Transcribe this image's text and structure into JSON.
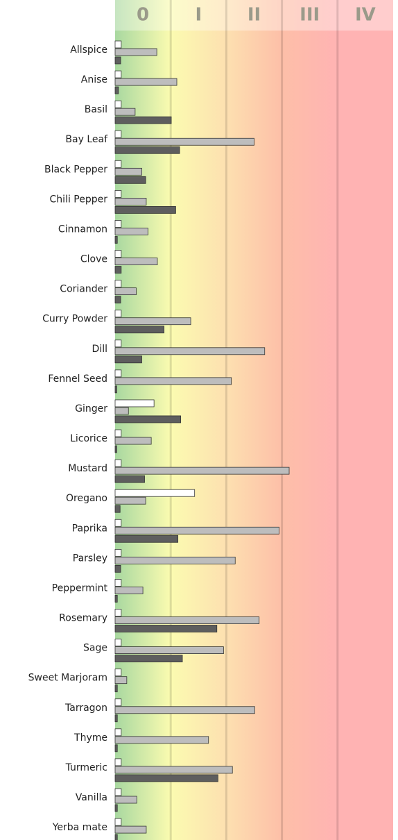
{
  "chart_data": {
    "type": "hbar",
    "categories": [
      "Allspice",
      "Anise",
      "Basil",
      "Bay Leaf",
      "Black Pepper",
      "Chili Pepper",
      "Cinnamon",
      "Clove",
      "Coriander",
      "Curry Powder",
      "Dill",
      "Fennel Seed",
      "Ginger",
      "Licorice",
      "Mustard",
      "Oregano",
      "Paprika",
      "Parsley",
      "Peppermint",
      "Rosemary",
      "Sage",
      "Sweet Marjoram",
      "Tarragon",
      "Thyme",
      "Turmeric",
      "Vanilla",
      "Yerba mate"
    ],
    "series": [
      {
        "color": "#ffffff",
        "values": [
          0.11,
          0.11,
          0.11,
          0.11,
          0.11,
          0.11,
          0.11,
          0.11,
          0.11,
          0.11,
          0.11,
          0.11,
          0.7,
          0.11,
          0.11,
          1.43,
          0.11,
          0.11,
          0.11,
          0.11,
          0.11,
          0.11,
          0.11,
          0.11,
          0.11,
          0.11,
          0.11
        ]
      },
      {
        "color": "#bdbdbd",
        "values": [
          0.75,
          1.11,
          0.36,
          2.5,
          0.48,
          0.56,
          0.59,
          0.76,
          0.38,
          1.36,
          2.69,
          2.09,
          0.24,
          0.65,
          3.13,
          0.55,
          2.95,
          2.16,
          0.5,
          2.59,
          1.95,
          0.21,
          2.51,
          1.68,
          2.11,
          0.39,
          0.56
        ]
      },
      {
        "color": "#5e5e5e",
        "values": [
          0.1,
          0.06,
          1.01,
          1.16,
          0.55,
          1.09,
          0.04,
          0.11,
          0.1,
          0.88,
          0.48,
          0.03,
          1.18,
          0.03,
          0.53,
          0.09,
          1.13,
          0.1,
          0.04,
          1.83,
          1.21,
          0.04,
          0.04,
          0.04,
          1.85,
          0.04,
          0.04
        ]
      }
    ],
    "xlim": [
      0,
      5
    ],
    "xticks": [
      {
        "value": 0.5,
        "label": "0"
      },
      {
        "value": 1.5,
        "label": "I"
      },
      {
        "value": 2.5,
        "label": "II"
      },
      {
        "value": 3.5,
        "label": "III"
      },
      {
        "value": 4.5,
        "label": "IV"
      }
    ],
    "grid": true
  }
}
